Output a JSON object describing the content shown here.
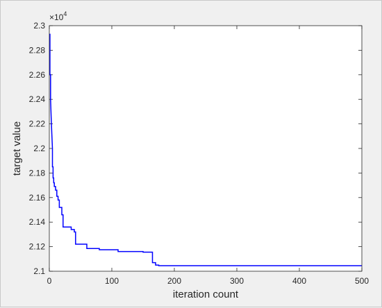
{
  "chart_data": {
    "type": "line",
    "title": "",
    "xlabel": "iteration count",
    "ylabel": "target value",
    "xlim": [
      0,
      500
    ],
    "ylim": [
      21000,
      23000
    ],
    "x_ticks": [
      0,
      100,
      200,
      300,
      400,
      500
    ],
    "y_ticks": [
      21000,
      21200,
      21400,
      21600,
      21800,
      22000,
      22200,
      22400,
      22600,
      22800,
      23000
    ],
    "y_tick_labels": [
      "2.1",
      "2.12",
      "2.14",
      "2.16",
      "2.18",
      "2.2",
      "2.22",
      "2.24",
      "2.26",
      "2.28",
      "2.3"
    ],
    "y_multiplier_base": "×10",
    "y_multiplier_exponent": "4",
    "grid": false,
    "line_color": "#0000ff",
    "series": [
      {
        "x": [
          0,
          1,
          1,
          2,
          2,
          3,
          4,
          5,
          5,
          6,
          6,
          7,
          7,
          8,
          8,
          10,
          10,
          12,
          12,
          14,
          14,
          16,
          16,
          20,
          20,
          22,
          22,
          35,
          35,
          40,
          40,
          42,
          42,
          60,
          60,
          80,
          80,
          110,
          110,
          150,
          150,
          165,
          165,
          170,
          170,
          175,
          175,
          500
        ],
        "values": [
          22930,
          22930,
          22600,
          22600,
          22400,
          22250,
          22120,
          22000,
          21850,
          21850,
          21760,
          21760,
          21720,
          21720,
          21690,
          21690,
          21660,
          21660,
          21610,
          21610,
          21580,
          21580,
          21520,
          21520,
          21460,
          21460,
          21360,
          21360,
          21340,
          21340,
          21320,
          21320,
          21220,
          21220,
          21185,
          21185,
          21175,
          21175,
          21160,
          21160,
          21155,
          21155,
          21070,
          21070,
          21050,
          21050,
          21045,
          21045
        ]
      }
    ]
  }
}
